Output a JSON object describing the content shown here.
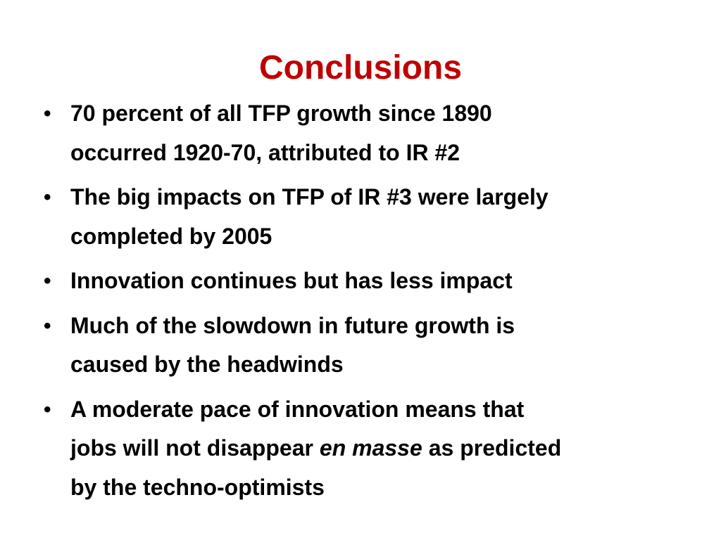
{
  "title": "Conclusions",
  "bullets": [
    {
      "lines": [
        "70 percent of all TFP growth since 1890",
        "occurred 1920-70, attributed to IR #2"
      ]
    },
    {
      "lines": [
        "The big impacts on TFP of IR #3 were largely",
        "completed by 2005"
      ]
    },
    {
      "lines": [
        "Innovation continues but has less impact"
      ]
    },
    {
      "lines": [
        "Much of the slowdown in future growth is",
        "caused by the headwinds"
      ]
    },
    {
      "lines": [
        "A moderate pace of innovation means that",
        {
          "before": "jobs will not disappear",
          "emphasis": "en masse",
          "after": "as predicted"
        },
        "by the techno-optimists"
      ]
    }
  ]
}
